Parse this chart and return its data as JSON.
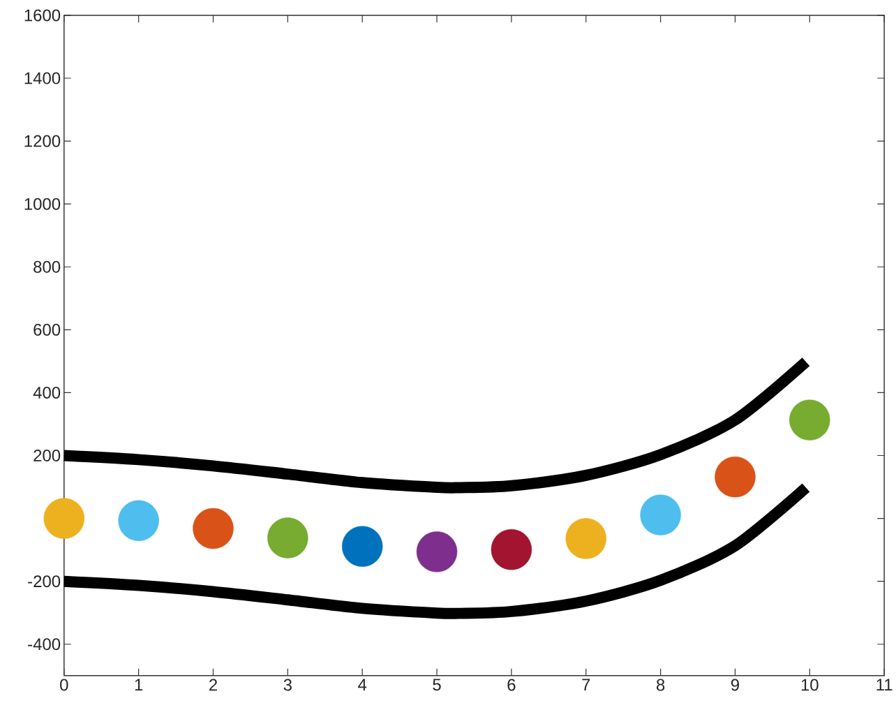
{
  "chart_data": {
    "type": "scatter",
    "xlim": [
      0,
      11
    ],
    "ylim": [
      -500,
      1600
    ],
    "xticks": [
      0,
      1,
      2,
      3,
      4,
      5,
      6,
      7,
      8,
      9,
      10,
      11
    ],
    "yticks": [
      -400,
      -200,
      {
        "value": 0,
        "label": null
      },
      200,
      400,
      600,
      800,
      1000,
      1200,
      1400,
      1600
    ],
    "grid": false,
    "series": [
      {
        "marker": "circle",
        "x": [
          0,
          1,
          2,
          3,
          4,
          5,
          6,
          7,
          8,
          9,
          10
        ],
        "values": [
          0,
          -7,
          -32,
          -62,
          -89,
          -106,
          -99,
          -64,
          11,
          132,
          313
        ],
        "colors": [
          "#edb120",
          "#4dbeee",
          "#d95319",
          "#77ac30",
          "#0072bd",
          "#7e2f8e",
          "#a2142f",
          "#edb120",
          "#4dbeee",
          "#d95319",
          "#77ac30"
        ]
      },
      {
        "type": "line",
        "marker": "none",
        "line_style": "solid",
        "color": "#000000",
        "x": [
          0,
          1,
          2,
          3,
          4,
          5,
          5.3,
          6,
          7,
          8,
          9,
          9.95
        ],
        "values": [
          200,
          187,
          167,
          141,
          114,
          99,
          98,
          104,
          137,
          203,
          313,
          498
        ]
      },
      {
        "type": "line",
        "marker": "none",
        "line_style": "solid",
        "color": "#000000",
        "x": [
          0,
          1,
          2,
          3,
          4,
          5,
          5.3,
          6,
          7,
          8,
          9,
          9.95
        ],
        "values": [
          -200,
          -213,
          -233,
          -259,
          -286,
          -301,
          -302,
          -296,
          -263,
          -197,
          -87,
          98
        ]
      }
    ]
  }
}
